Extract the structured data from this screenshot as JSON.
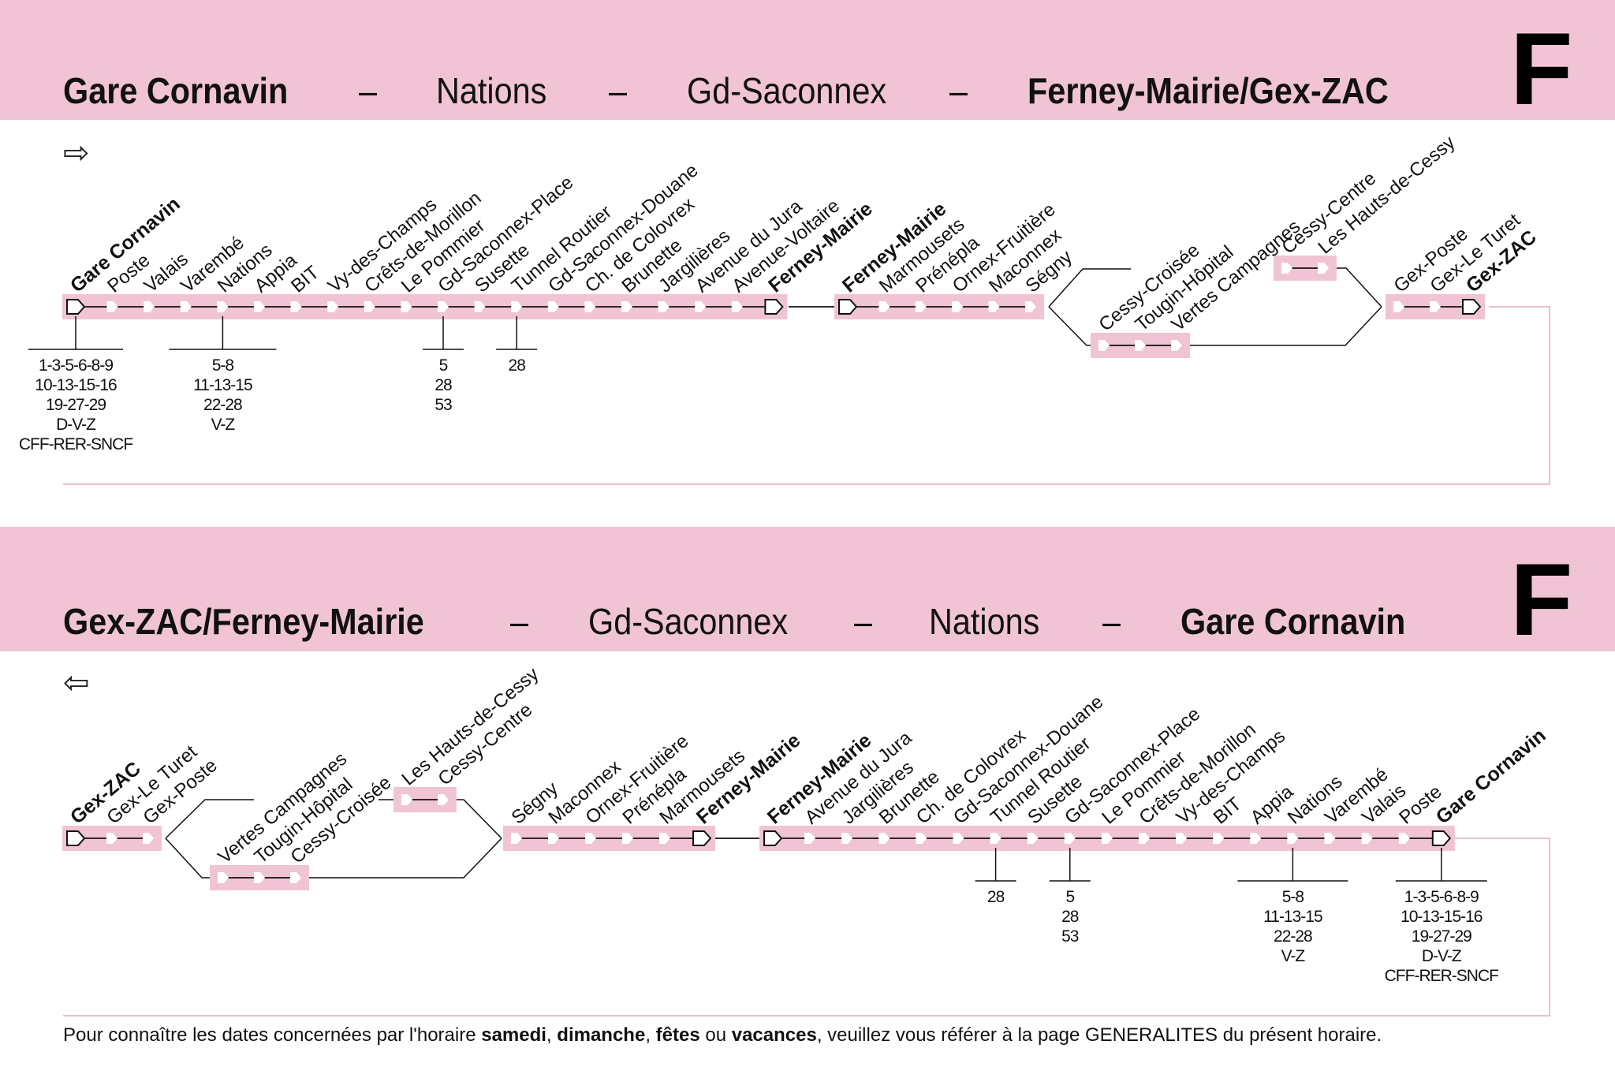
{
  "outbound": {
    "header": {
      "parts": [
        {
          "text": "Gare Cornavin",
          "bold": true
        },
        {
          "text": "–",
          "bold": false
        },
        {
          "text": "Nations",
          "bold": false
        },
        {
          "text": "–",
          "bold": false
        },
        {
          "text": "Gd-Saconnex",
          "bold": false
        },
        {
          "text": "–",
          "bold": false
        },
        {
          "text": "Ferney-Mairie/Gex-ZAC",
          "bold": true
        }
      ],
      "line": "F"
    },
    "direction_arrow": "⇨",
    "direction_icon": "right-arrow-icon",
    "stops": [
      {
        "name": "Gare Cornavin",
        "bold": true,
        "terminus": true
      },
      {
        "name": "Poste"
      },
      {
        "name": "Valais"
      },
      {
        "name": "Varembé"
      },
      {
        "name": "Nations"
      },
      {
        "name": "Appia"
      },
      {
        "name": "BIT"
      },
      {
        "name": "Vy-des-Champs"
      },
      {
        "name": "Crêts-de-Morillon"
      },
      {
        "name": "Le Pommier"
      },
      {
        "name": "Gd-Saconnex-Place"
      },
      {
        "name": "Susette"
      },
      {
        "name": "Tunnel Routier"
      },
      {
        "name": "Gd-Saconnex-Douane"
      },
      {
        "name": "Ch. de Colovrex"
      },
      {
        "name": "Brunette"
      },
      {
        "name": "Jargilières"
      },
      {
        "name": "Avenue du Jura"
      },
      {
        "name": "Avenue-Voltaire"
      },
      {
        "name": "Ferney-Mairie",
        "bold": true,
        "terminus": true
      },
      {
        "name": "Ferney-Mairie",
        "bold": true,
        "terminus": true
      },
      {
        "name": "Marmousets"
      },
      {
        "name": "Prénépla"
      },
      {
        "name": "Ornex-Fruitière"
      },
      {
        "name": "Maconnex"
      },
      {
        "name": "Ségny"
      },
      {
        "name": "Cessy-Croisée",
        "branch": "lower"
      },
      {
        "name": "Tougin-Hôpital",
        "branch": "lower"
      },
      {
        "name": "Vertes Campagnes",
        "branch": "lower"
      },
      {
        "name": "Cessy-Centre",
        "branch": "upper"
      },
      {
        "name": "Les Hauts-de-Cessy",
        "branch": "upper"
      },
      {
        "name": "Gex-Poste"
      },
      {
        "name": "Gex-Le Turet"
      },
      {
        "name": "Gex-ZAC",
        "bold": true,
        "terminus": true
      }
    ],
    "connections": [
      {
        "stop": "Gare Cornavin",
        "lines": [
          "1-3-5-6-8-9",
          "10-13-15-16",
          "19-27-29",
          "D-V-Z",
          "CFF-RER-SNCF"
        ]
      },
      {
        "stop": "Nations",
        "lines": [
          "5-8",
          "11-13-15",
          "22-28",
          "V-Z"
        ]
      },
      {
        "stop": "Gd-Saconnex-Place",
        "lines": [
          "5",
          "28",
          "53"
        ]
      },
      {
        "stop": "Tunnel Routier",
        "lines": [
          "28"
        ]
      }
    ]
  },
  "inbound": {
    "header": {
      "parts": [
        {
          "text": "Gex-ZAC/Ferney-Mairie",
          "bold": true
        },
        {
          "text": "–",
          "bold": false
        },
        {
          "text": "Gd-Saconnex",
          "bold": false
        },
        {
          "text": "–",
          "bold": false
        },
        {
          "text": "Nations",
          "bold": false
        },
        {
          "text": "–",
          "bold": false
        },
        {
          "text": "Gare Cornavin",
          "bold": true
        }
      ],
      "line": "F"
    },
    "direction_arrow": "⇦",
    "direction_icon": "left-arrow-icon",
    "stops": [
      {
        "name": "Gex-ZAC",
        "bold": true,
        "terminus": true
      },
      {
        "name": "Gex-Le Turet"
      },
      {
        "name": "Gex-Poste"
      },
      {
        "name": "Vertes Campagnes",
        "branch": "lower"
      },
      {
        "name": "Tougin-Hôpital",
        "branch": "lower"
      },
      {
        "name": "Cessy-Croisée",
        "branch": "lower"
      },
      {
        "name": "Les Hauts-de-Cessy",
        "branch": "upper"
      },
      {
        "name": "Cessy-Centre",
        "branch": "upper"
      },
      {
        "name": "Ségny"
      },
      {
        "name": "Maconnex"
      },
      {
        "name": "Ornex-Fruitière"
      },
      {
        "name": "Prénépla"
      },
      {
        "name": "Marmousets"
      },
      {
        "name": "Ferney-Mairie",
        "bold": true,
        "terminus": true
      },
      {
        "name": "Ferney-Mairie",
        "bold": true,
        "terminus": true
      },
      {
        "name": "Avenue du Jura"
      },
      {
        "name": "Jargilières"
      },
      {
        "name": "Brunette"
      },
      {
        "name": "Ch. de Colovrex"
      },
      {
        "name": "Gd-Saconnex-Douane"
      },
      {
        "name": "Tunnel Routier"
      },
      {
        "name": "Susette"
      },
      {
        "name": "Gd-Saconnex-Place"
      },
      {
        "name": "Le Pommier"
      },
      {
        "name": "Crêts-de-Morillon"
      },
      {
        "name": "Vy-des-Champs"
      },
      {
        "name": "BIT"
      },
      {
        "name": "Appia"
      },
      {
        "name": "Nations"
      },
      {
        "name": "Varembé"
      },
      {
        "name": "Valais"
      },
      {
        "name": "Poste"
      },
      {
        "name": "Gare Cornavin",
        "bold": true,
        "terminus": true
      }
    ],
    "connections": [
      {
        "stop": "Tunnel Routier",
        "lines": [
          "28"
        ]
      },
      {
        "stop": "Gd-Saconnex-Place",
        "lines": [
          "5",
          "28",
          "53"
        ]
      },
      {
        "stop": "Nations",
        "lines": [
          "5-8",
          "11-13-15",
          "22-28",
          "V-Z"
        ]
      },
      {
        "stop": "Gare Cornavin",
        "lines": [
          "1-3-5-6-8-9",
          "10-13-15-16",
          "19-27-29",
          "D-V-Z",
          "CFF-RER-SNCF"
        ]
      }
    ]
  },
  "footer": [
    {
      "text": "Pour connaître les dates concernées par l'horaire ",
      "bold": false
    },
    {
      "text": "samedi",
      "bold": true
    },
    {
      "text": ", ",
      "bold": false
    },
    {
      "text": "dimanche",
      "bold": true
    },
    {
      "text": ", ",
      "bold": false
    },
    {
      "text": "fêtes",
      "bold": true
    },
    {
      "text": " ou ",
      "bold": false
    },
    {
      "text": "vacances",
      "bold": true
    },
    {
      "text": ", veuillez vous référer à la page GENERALITES du présent horaire.",
      "bold": false
    }
  ],
  "colors": {
    "band": "#f0c4d4",
    "track": "#f0c4d4",
    "line": "#111111",
    "loop": "#e8a8c0"
  }
}
